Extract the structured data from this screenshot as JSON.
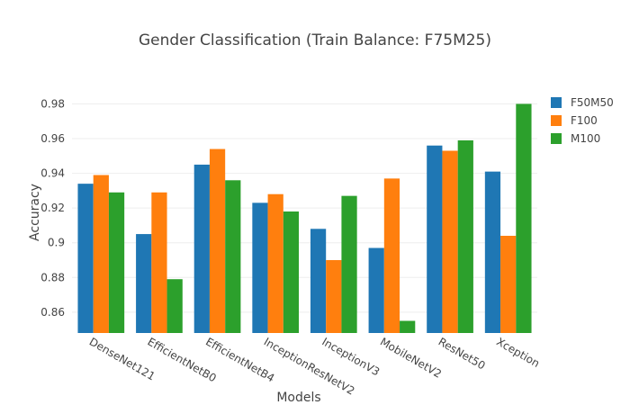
{
  "chart_data": {
    "type": "bar",
    "title": "Gender Classification (Train Balance: F75M25)",
    "xlabel": "Models",
    "ylabel": "Accuracy",
    "categories": [
      "DenseNet121",
      "EfficientNetB0",
      "EfficientNetB4",
      "InceptionResNetV2",
      "InceptionV3",
      "MobileNetV2",
      "ResNet50",
      "Xception"
    ],
    "series": [
      {
        "name": "F50M50",
        "color": "#1f77b4",
        "values": [
          0.934,
          0.905,
          0.945,
          0.923,
          0.908,
          0.897,
          0.956,
          0.941
        ]
      },
      {
        "name": "F100",
        "color": "#ff7f0e",
        "values": [
          0.939,
          0.929,
          0.954,
          0.928,
          0.89,
          0.937,
          0.953,
          0.904
        ]
      },
      {
        "name": "M100",
        "color": "#2ca02c",
        "values": [
          0.929,
          0.879,
          0.936,
          0.918,
          0.927,
          0.855,
          0.959,
          0.98
        ]
      }
    ],
    "ylim": [
      0.848,
      0.988
    ],
    "yticks": [
      0.86,
      0.88,
      0.9,
      0.92,
      0.94,
      0.96,
      0.98
    ],
    "ytick_labels": [
      "0.86",
      "0.88",
      "0.9",
      "0.92",
      "0.94",
      "0.96",
      "0.98"
    ],
    "grid": true,
    "legend_position": "top-right"
  }
}
